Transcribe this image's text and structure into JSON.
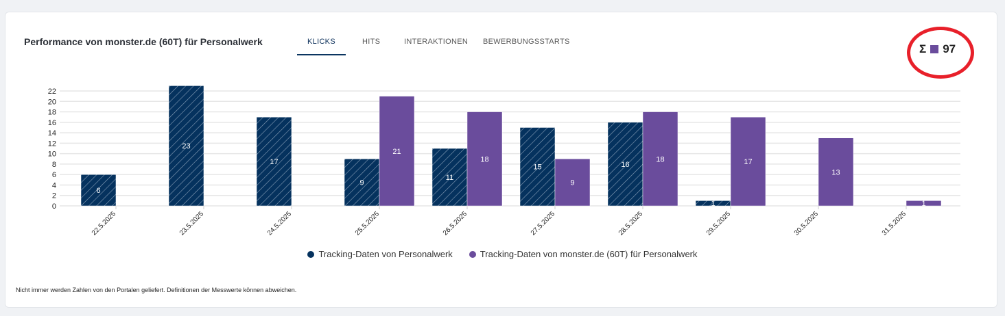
{
  "header": {
    "title": "Performance von monster.de (60T) für Personalwerk",
    "tabs": [
      {
        "label": "KLICKS",
        "active": true
      },
      {
        "label": "HITS"
      },
      {
        "label": "INTERAKTIONEN"
      },
      {
        "label": "BEWERBUNGSSTARTS"
      }
    ],
    "sum": {
      "symbol": "Σ",
      "value": "97",
      "color": "#6a4c9c"
    }
  },
  "chart_data": {
    "type": "bar",
    "categories": [
      "22.5.2025",
      "23.5.2025",
      "24.5.2025",
      "25.5.2025",
      "26.5.2025",
      "27.5.2025",
      "28.5.2025",
      "29.5.2025",
      "30.5.2025",
      "31.5.2025"
    ],
    "series": [
      {
        "name": "Tracking-Daten von Personalwerk",
        "color": "#05325e",
        "pattern": "diagonal-hatch",
        "values": [
          6,
          23,
          17,
          9,
          11,
          15,
          16,
          1,
          null,
          null
        ]
      },
      {
        "name": "Tracking-Daten von monster.de (60T) für Personalwerk",
        "color": "#6a4c9c",
        "values": [
          null,
          null,
          null,
          21,
          18,
          9,
          18,
          17,
          13,
          1
        ]
      }
    ],
    "yticks": [
      0,
      2,
      4,
      6,
      8,
      10,
      12,
      14,
      16,
      18,
      20,
      22
    ],
    "ylim": [
      0,
      23
    ],
    "grid": true,
    "legend": "bottom"
  },
  "footer": {
    "note": "Nicht immer werden Zahlen von den Portalen geliefert. Definitionen der Messwerte können abweichen."
  }
}
